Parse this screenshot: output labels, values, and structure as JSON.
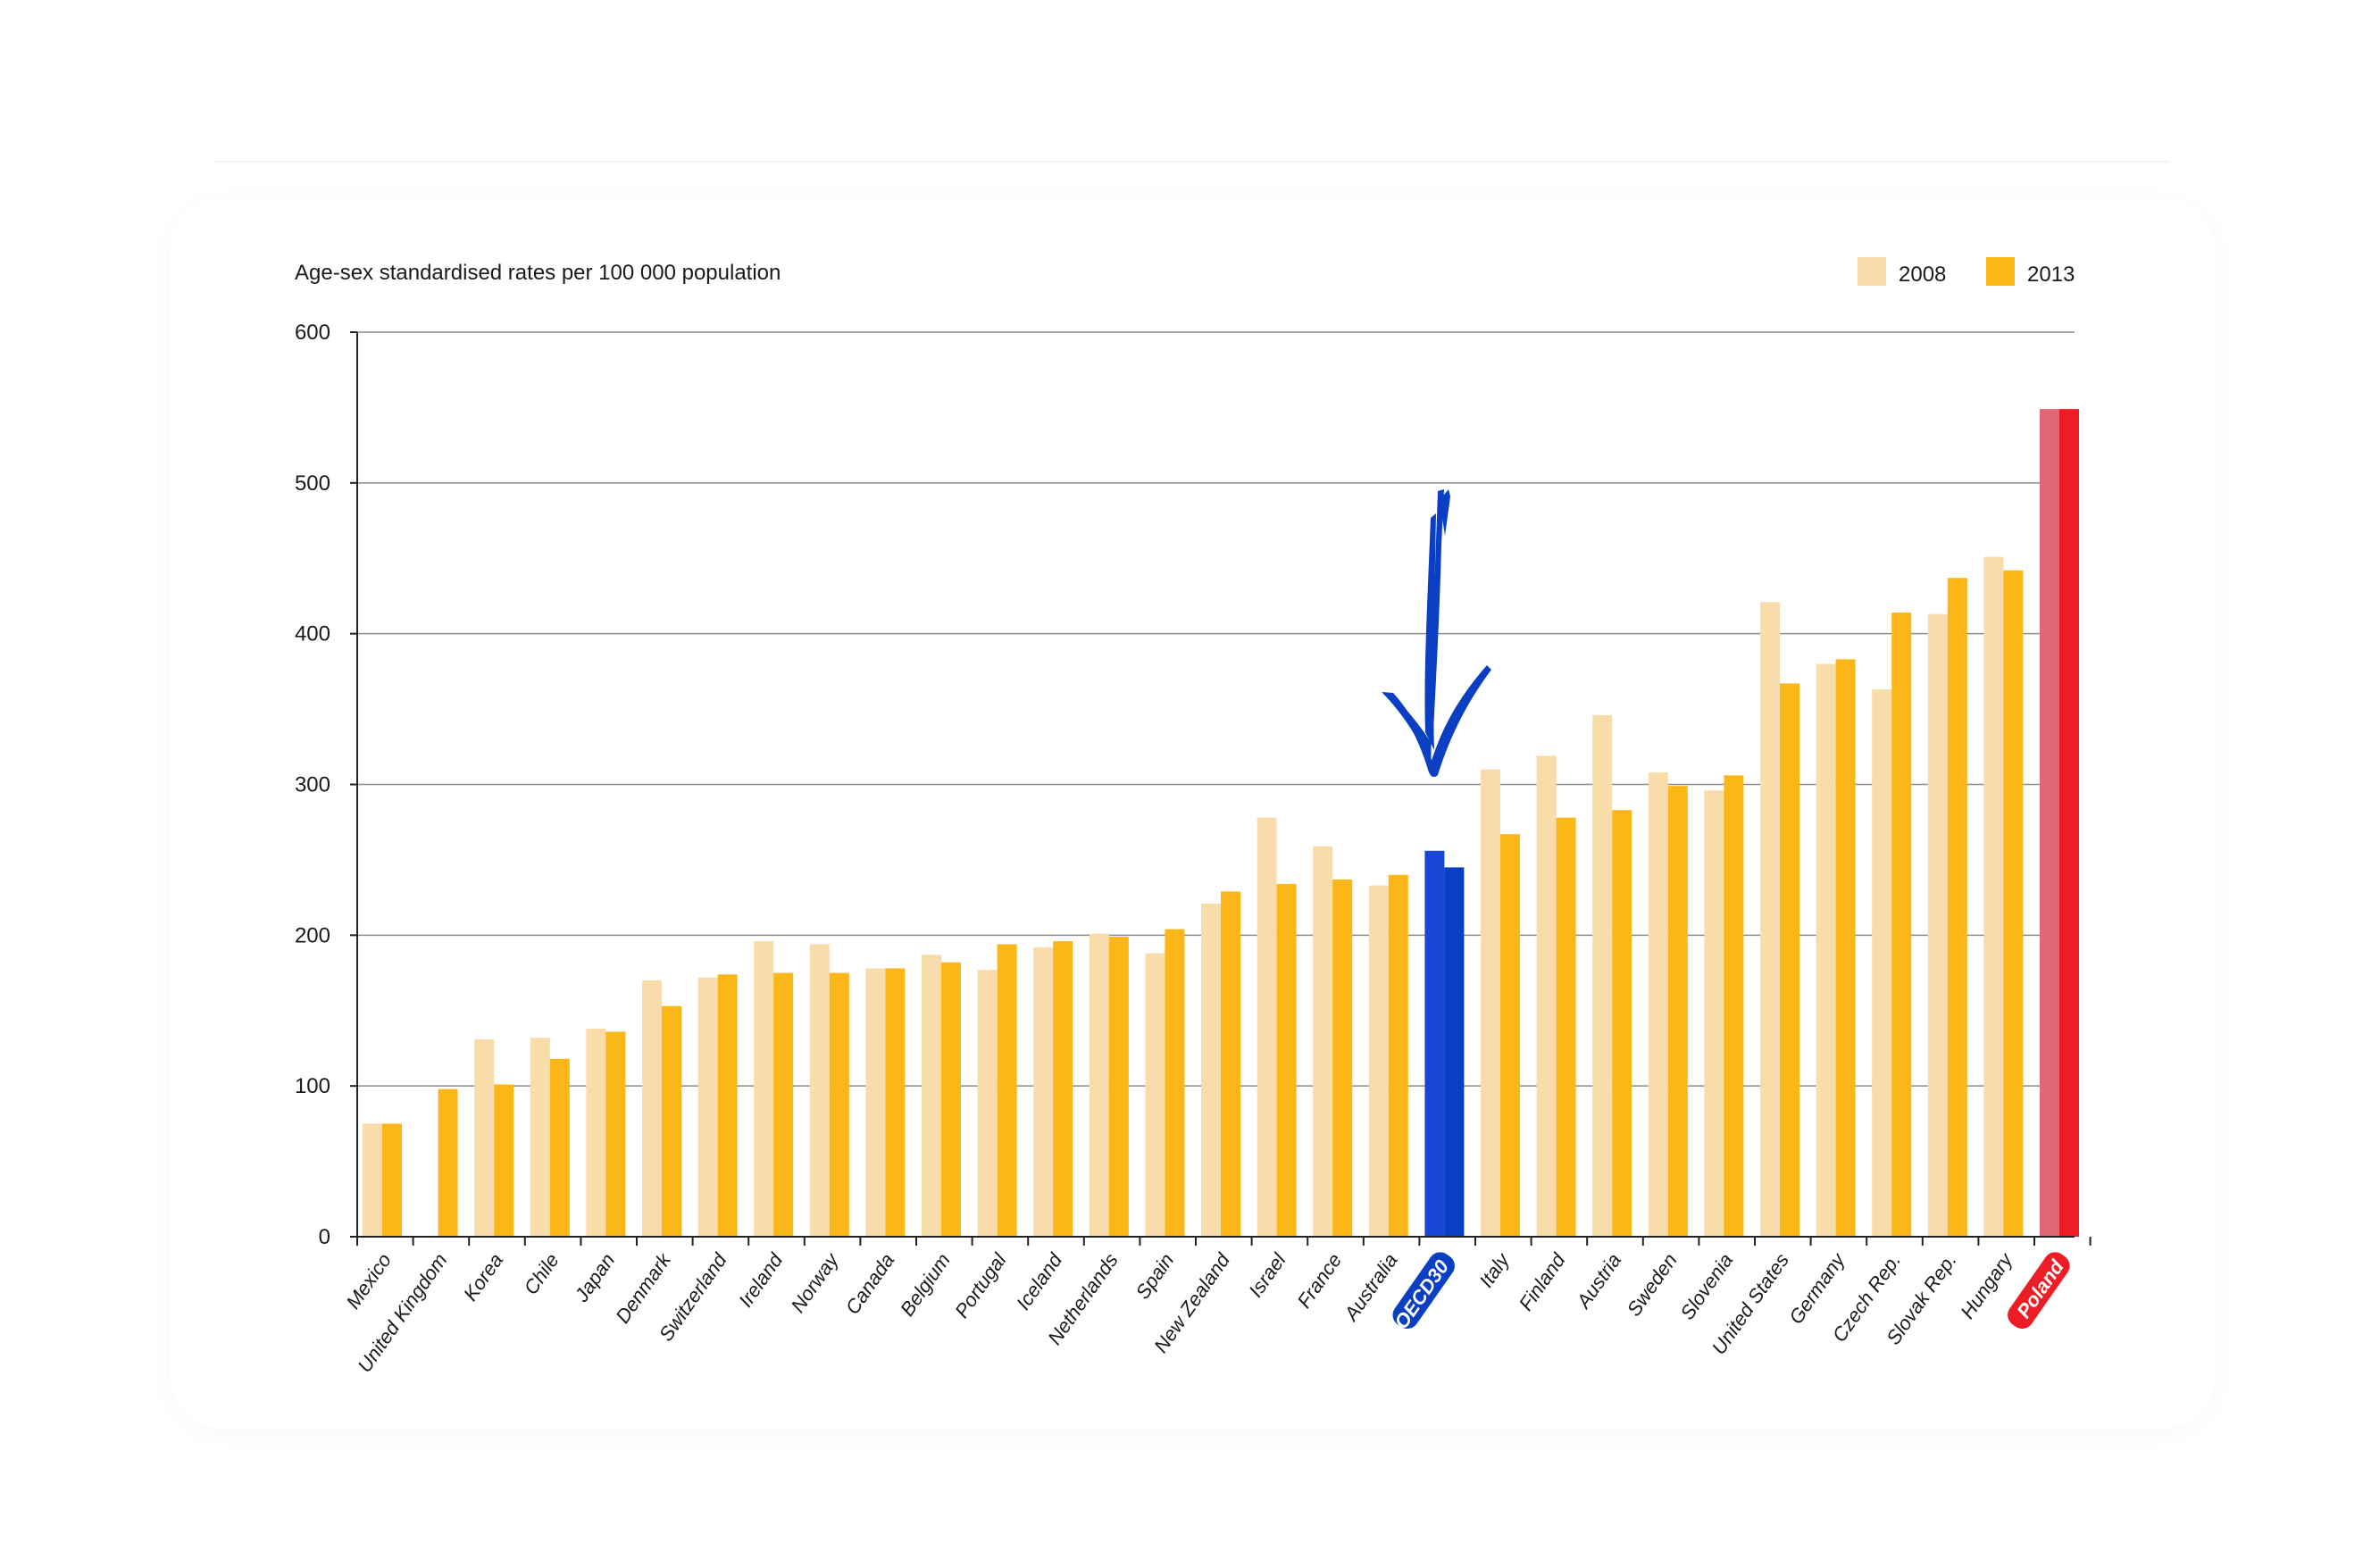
{
  "chart_data": {
    "type": "bar",
    "ylabel": "Age-sex standardised rates per 100 000 population",
    "ylim": [
      0,
      600
    ],
    "yticks": [
      0,
      100,
      200,
      300,
      400,
      500,
      600
    ],
    "grid": true,
    "legend_position": "top-right",
    "categories": [
      "Mexico",
      "United Kingdom",
      "Korea",
      "Chile",
      "Japan",
      "Denmark",
      "Switzerland",
      "Ireland",
      "Norway",
      "Canada",
      "Belgium",
      "Portugal",
      "Iceland",
      "Netherlands",
      "Spain",
      "New Zealand",
      "Israel",
      "France",
      "Australia",
      "OECD30",
      "Italy",
      "Finland",
      "Austria",
      "Sweden",
      "Slovenia",
      "United States",
      "Germany",
      "Czech Rep.",
      "Slovak Rep.",
      "Hungary",
      "Poland"
    ],
    "highlighted": {
      "OECD30": "#0a3fc4",
      "Poland": "#ee1c25"
    },
    "series": [
      {
        "name": "2008",
        "color": "#f8dcaa",
        "values": [
          75,
          null,
          131,
          132,
          138,
          170,
          172,
          196,
          194,
          178,
          187,
          177,
          192,
          201,
          188,
          221,
          278,
          259,
          233,
          256,
          310,
          319,
          346,
          308,
          296,
          421,
          380,
          363,
          413,
          451,
          549
        ]
      },
      {
        "name": "2013",
        "color": "#fbb617",
        "values": [
          75,
          98,
          101,
          118,
          136,
          153,
          174,
          175,
          175,
          178,
          182,
          194,
          196,
          199,
          204,
          229,
          234,
          237,
          240,
          245,
          267,
          278,
          283,
          299,
          306,
          367,
          383,
          414,
          437,
          442,
          549
        ]
      }
    ],
    "highlight_colors_2008": {
      "OECD30": "#1847d8",
      "Poland": "#e06775"
    }
  },
  "annotation": {
    "arrow_icon": "hand-drawn-down-arrow-icon",
    "arrow_color": "#0a3fc4"
  }
}
